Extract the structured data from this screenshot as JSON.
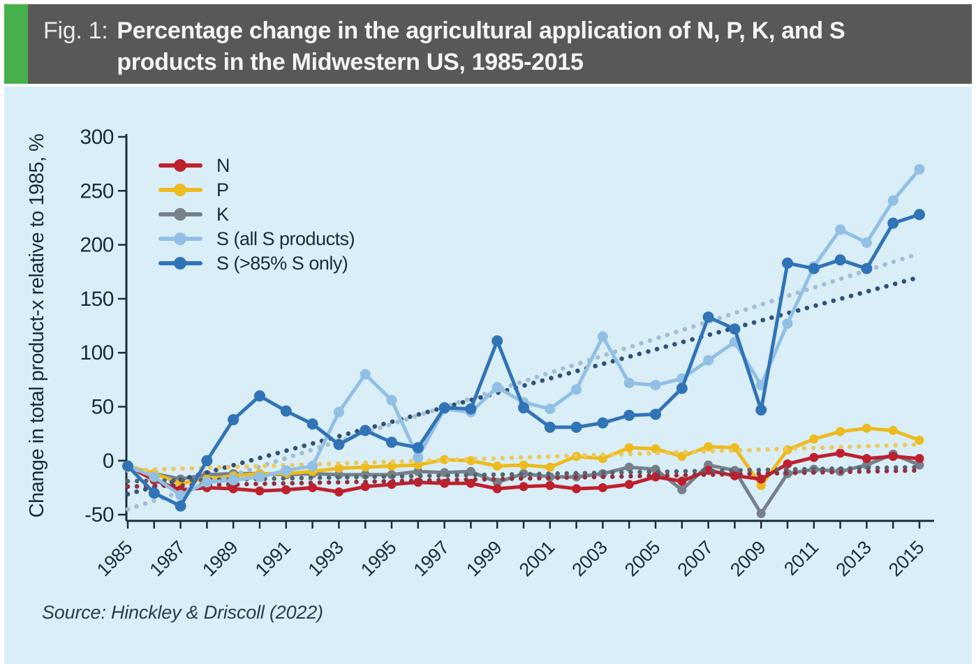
{
  "figure": {
    "label": "Fig. 1:",
    "title_line1": "Percentage change in the agricultural application of N, P, K, and S",
    "title_line2": "products in the Midwestern US, 1985-2015",
    "source": "Source: Hinckley & Driscoll (2022)"
  },
  "colors": {
    "accent_green": "#46b14c",
    "header_bg": "#5a5857",
    "header_text": "#f6f5f3",
    "panel_bg": "#d9eef7",
    "axis_text": "#1d2b35",
    "source_text": "#2c3b46"
  },
  "chart_data": {
    "type": "line",
    "title": "Percentage change in the agricultural application of N, P, K, and S products in the Midwestern US, 1985-2015",
    "xlabel": "",
    "ylabel": "Change in total product-x relative to 1985, %",
    "ylim": [
      -50,
      300
    ],
    "yticks": [
      300,
      250,
      200,
      150,
      100,
      50,
      0,
      -50
    ],
    "x_start": 1985,
    "x_end": 2015,
    "x_step": 1,
    "xtick_labels": [
      "1985",
      "1987",
      "1989",
      "1991",
      "1993",
      "1995",
      "1997",
      "1999",
      "2001",
      "2003",
      "2005",
      "2007",
      "2009",
      "2011",
      "2013",
      "2015"
    ],
    "grid": false,
    "legend_position": "upper-left-inside",
    "x": [
      1985,
      1986,
      1987,
      1988,
      1989,
      1990,
      1991,
      1992,
      1993,
      1994,
      1995,
      1996,
      1997,
      1998,
      1999,
      2000,
      2001,
      2002,
      2003,
      2004,
      2005,
      2006,
      2007,
      2008,
      2009,
      2010,
      2011,
      2012,
      2013,
      2014,
      2015
    ],
    "series": [
      {
        "id": "N",
        "label": "N",
        "color": "#bf202e",
        "values": [
          -5,
          -18,
          -27,
          -25,
          -26,
          -28,
          -27,
          -25,
          -29,
          -24,
          -22,
          -20,
          -21,
          -21,
          -26,
          -24,
          -23,
          -26,
          -25,
          -22,
          -15,
          -19,
          -9,
          -14,
          -17,
          -3,
          3,
          7,
          2,
          4,
          2
        ]
      },
      {
        "id": "P",
        "label": "P",
        "color": "#edbb1d",
        "values": [
          -5,
          -12,
          -21,
          -17,
          -14,
          -12,
          -12,
          -10,
          -7,
          -6,
          -5,
          -4,
          1,
          0,
          -5,
          -4,
          -6,
          4,
          2,
          12,
          11,
          4,
          13,
          12,
          -23,
          10,
          20,
          27,
          30,
          28,
          19
        ]
      },
      {
        "id": "K",
        "label": "K",
        "color": "#75808a",
        "values": [
          -5,
          -12,
          -17,
          -13,
          -12,
          -12,
          -13,
          -12,
          -13,
          -13,
          -13,
          -10,
          -11,
          -10,
          -20,
          -12,
          -15,
          -15,
          -12,
          -6,
          -8,
          -27,
          -4,
          -9,
          -49,
          -12,
          -8,
          -10,
          -4,
          6,
          -4
        ]
      },
      {
        "id": "S_all",
        "label": "S (all S products)",
        "color": "#92bfe4",
        "values": [
          -5,
          -15,
          -32,
          -20,
          -18,
          -15,
          -9,
          -5,
          45,
          80,
          56,
          3,
          48,
          45,
          68,
          54,
          48,
          66,
          115,
          72,
          70,
          76,
          93,
          110,
          70,
          127,
          180,
          214,
          202,
          241,
          270
        ]
      },
      {
        "id": "S85",
        "label": "S (>85% S only)",
        "color": "#3173b7",
        "values": [
          -5,
          -30,
          -42,
          0,
          38,
          60,
          46,
          34,
          15,
          28,
          17,
          12,
          49,
          48,
          111,
          49,
          31,
          31,
          35,
          42,
          43,
          67,
          133,
          122,
          47,
          183,
          178,
          186,
          178,
          220,
          228
        ]
      }
    ],
    "trend_lines": [
      {
        "id": "S85_trend",
        "for": "S85",
        "style": "dotted",
        "color": "#2f5179",
        "start": [
          1985,
          -31
        ],
        "end": [
          2015,
          170
        ]
      },
      {
        "id": "S_all_trend",
        "for": "S_all",
        "style": "dotted",
        "color": "#a4bed2",
        "start": [
          1985,
          -45
        ],
        "end": [
          2015,
          192
        ]
      },
      {
        "id": "K_trend",
        "for": "K",
        "style": "dotted",
        "color": "#54646f",
        "start": [
          1985,
          -19
        ],
        "end": [
          2015,
          -6
        ]
      },
      {
        "id": "P_trend",
        "for": "P",
        "style": "dotted",
        "color": "#ecc95f",
        "start": [
          1985,
          -9
        ],
        "end": [
          2015,
          15
        ]
      },
      {
        "id": "N_trend",
        "for": "N",
        "style": "dotted",
        "color": "#942f3c",
        "start": [
          1985,
          -24
        ],
        "end": [
          2015,
          -9
        ]
      }
    ]
  }
}
